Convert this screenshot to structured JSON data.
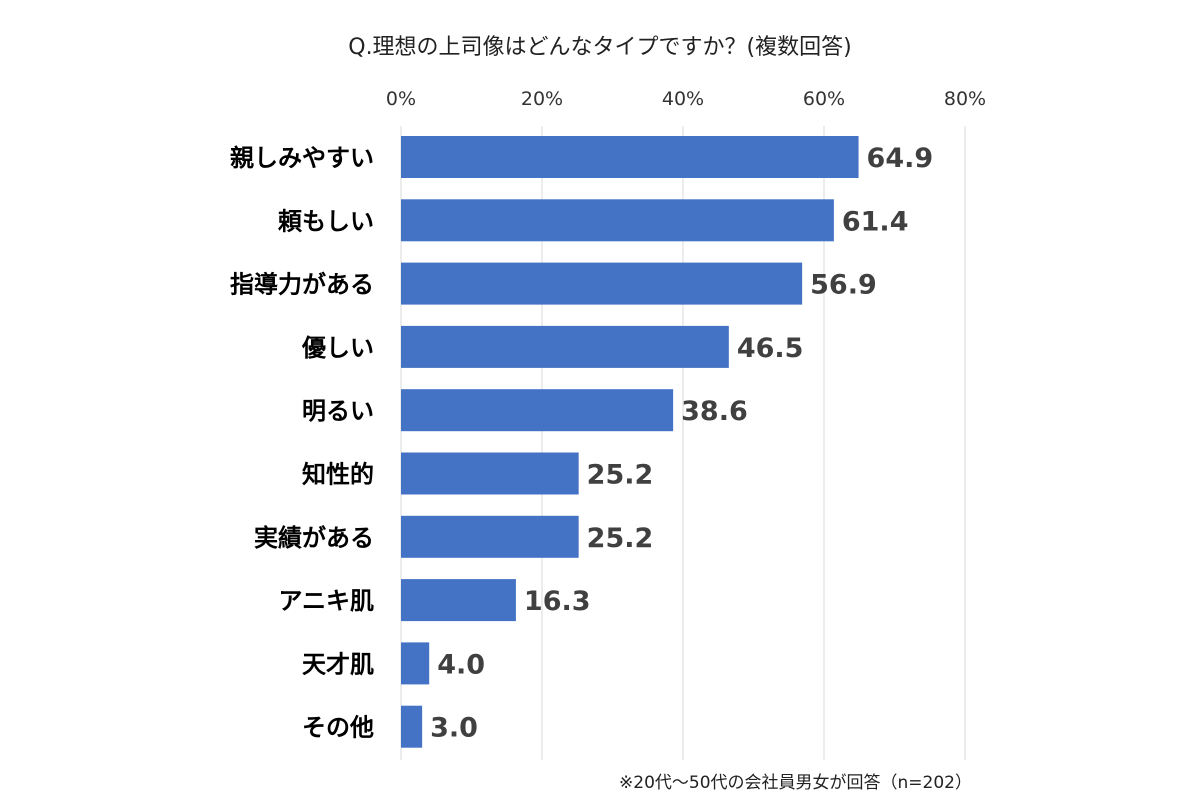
{
  "chart_data": {
    "type": "bar",
    "orientation": "horizontal",
    "title": "Q.理想の上司像はどんなタイプですか？(複数回答)",
    "categories": [
      "親しみやすい",
      "頼もしい",
      "指導力がある",
      "優しい",
      "明るい",
      "知性的",
      "実績がある",
      "アニキ肌",
      "天才肌",
      "その他"
    ],
    "values": [
      64.9,
      61.4,
      56.9,
      46.5,
      38.6,
      25.2,
      25.2,
      16.3,
      4.0,
      3.0
    ],
    "value_labels": [
      "64.9",
      "61.4",
      "56.9",
      "46.5",
      "38.6",
      "25.2",
      "25.2",
      "16.3",
      "4.0",
      "3.0"
    ],
    "xlim": [
      0,
      80
    ],
    "x_ticks": [
      0,
      20,
      40,
      60,
      80
    ],
    "x_tick_labels": [
      "0%",
      "20%",
      "40%",
      "60%",
      "80%"
    ],
    "x_axis_position": "top",
    "grid": true,
    "xlabel": "",
    "ylabel": "",
    "bar_color": "#4472c4",
    "note": "※20代～50代の会社員男女が回答（n=202）"
  }
}
